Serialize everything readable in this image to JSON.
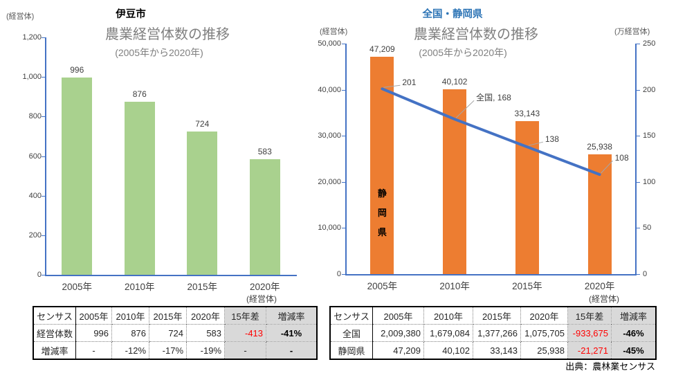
{
  "source": "出典：農林業センサス",
  "colors": {
    "izu_bar": "#a9d18e",
    "shizuoka_bar": "#ed7d31",
    "national_line": "#4472c4",
    "axis": "#4472c4",
    "region_title_right": "#2e75b6",
    "title_gray": "#7f7f7f",
    "table_highlight_bg": "#d9d9d9",
    "negative_red": "#ff0000"
  },
  "chart_data": [
    {
      "type": "bar",
      "region_title": "伊豆市",
      "title": "農業経営体数の推移",
      "subtitle": "(2005年から2020年)",
      "y_axis_unit": "(経営体)",
      "x_axis_unit": "(経営体)",
      "categories": [
        "2005年",
        "2010年",
        "2015年",
        "2020年"
      ],
      "values": [
        996,
        876,
        724,
        583
      ],
      "value_labels": [
        "996",
        "876",
        "724",
        "583"
      ],
      "ylim": [
        0,
        1200
      ],
      "ytick_step": 200,
      "ytick_labels": [
        "0",
        "200",
        "400",
        "600",
        "800",
        "1,000",
        "1,200"
      ],
      "grid": false,
      "legend": "none",
      "bar_color": "#a9d18e"
    },
    {
      "type": "bar+line",
      "region_title": "全国・静岡県",
      "title": "農業経営体数の推移",
      "subtitle": "(2005年から2020年)",
      "y_axis_unit": "(経営体)",
      "y2_axis_unit": "(万経営体)",
      "x_axis_unit": "(経営体)",
      "categories": [
        "2005年",
        "2010年",
        "2015年",
        "2020年"
      ],
      "series": [
        {
          "name": "静岡県",
          "type": "bar",
          "axis": "left",
          "values": [
            47209,
            40102,
            33143,
            25938
          ],
          "value_labels": [
            "47,209",
            "40,102",
            "33,143",
            "25,938"
          ],
          "in_bar_label": "静岡県",
          "color": "#ed7d31"
        },
        {
          "name": "全国",
          "type": "line",
          "axis": "right",
          "values": [
            201,
            168,
            138,
            108
          ],
          "point_labels": [
            "201",
            "全国, 168",
            "138",
            "108"
          ],
          "color": "#4472c4"
        }
      ],
      "ylim_left": [
        0,
        50000
      ],
      "ytick_labels_left": [
        "0",
        "10,000",
        "20,000",
        "30,000",
        "40,000",
        "50,000"
      ],
      "ylim_right": [
        0,
        250
      ],
      "ytick_labels_right": [
        "0",
        "50",
        "100",
        "150",
        "200",
        "250"
      ],
      "grid": false,
      "legend": "none"
    }
  ],
  "tables": [
    {
      "header": [
        "センサス",
        "2005年",
        "2010年",
        "2015年",
        "2020年",
        "15年差",
        "増減率"
      ],
      "rows": [
        {
          "label": "経営体数",
          "values": [
            "996",
            "876",
            "724",
            "583"
          ],
          "diff": "-413",
          "rate": "-41%"
        },
        {
          "label": "増減率",
          "values": [
            "-",
            "-12%",
            "-17%",
            "-19%"
          ],
          "diff": "-",
          "rate": "-"
        }
      ]
    },
    {
      "header": [
        "センサス",
        "2005年",
        "2010年",
        "2015年",
        "2020年",
        "15年差",
        "増減率"
      ],
      "rows": [
        {
          "label": "全国",
          "values": [
            "2,009,380",
            "1,679,084",
            "1,377,266",
            "1,075,705"
          ],
          "diff": "-933,675",
          "rate": "-46%"
        },
        {
          "label": "静岡県",
          "values": [
            "47,209",
            "40,102",
            "33,143",
            "25,938"
          ],
          "diff": "-21,271",
          "rate": "-45%"
        }
      ]
    }
  ]
}
